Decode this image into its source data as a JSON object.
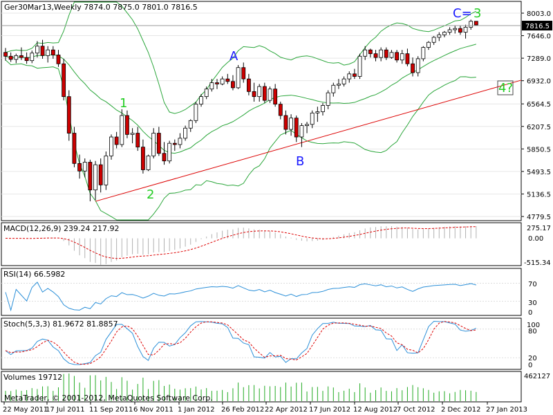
{
  "main": {
    "info": "Ger30Mar13,Weekly  7874.0 7875.0 7801.0 7816.5",
    "current_price": "7816.5",
    "price_ticks": [
      "8003.0",
      "7646.0",
      "7289.0",
      "6932.0",
      "6564.5",
      "6207.5",
      "5850.5",
      "5493.5",
      "5136.5",
      "4779.5"
    ],
    "wave_labels": [
      {
        "text": "A",
        "color": "blue"
      },
      {
        "text": "B",
        "color": "blue"
      },
      {
        "text": "C=",
        "color": "blue"
      },
      {
        "text": "1",
        "color": "green"
      },
      {
        "text": "2",
        "color": "green"
      },
      {
        "text": "3",
        "color": "green"
      },
      {
        "text": "4?",
        "color": "green"
      }
    ]
  },
  "macd": {
    "title": "MACD(12,26,9) 239.24 217.92",
    "ticks": [
      "275.17",
      "0.00",
      "-515.34"
    ]
  },
  "rsi": {
    "title": "RSI(14) 66.5982",
    "ticks": [
      "70",
      "30",
      "0"
    ]
  },
  "stoch": {
    "title": "Stoch(5,3,3) 81.9672 81.8857",
    "ticks": [
      "100",
      "80",
      "20",
      "0"
    ]
  },
  "volumes": {
    "title": "Volumes 19712",
    "ticks": [
      "462127"
    ]
  },
  "copyright": "MetaTrader, © 2001-2012, MetaQuotes Software Corp.",
  "dates": [
    "22 May 2011",
    "17 Jul 2011",
    "11 Sep 2011",
    "6 Nov 2011",
    "1 Jan 2012",
    "26 Feb 2012",
    "22 Apr 2012",
    "17 Jun 2012",
    "12 Aug 2012",
    "7 Oct 2012",
    "2 Dec 2012",
    "27 Jan 2013"
  ],
  "colors": {
    "bull": "#ffffff",
    "bear": "#cc0000",
    "band": "#2aa63a",
    "trend": "#dd0000",
    "macd_signal": "#dd0000",
    "rsi": "#2b8fd8",
    "stoch_main": "#2b8fd8",
    "stoch_signal": "#dd0000",
    "volume": "#22aa22"
  },
  "chart_data": {
    "type": "candlestick",
    "symbol": "Ger30Mar13",
    "timeframe": "Weekly",
    "ylim": [
      4779.5,
      8003.0
    ],
    "ohlc": [
      [
        7380,
        7450,
        7250,
        7320
      ],
      [
        7320,
        7380,
        7230,
        7270
      ],
      [
        7270,
        7360,
        7210,
        7330
      ],
      [
        7330,
        7460,
        7260,
        7300
      ],
      [
        7300,
        7380,
        7200,
        7250
      ],
      [
        7250,
        7410,
        7210,
        7370
      ],
      [
        7370,
        7560,
        7300,
        7480
      ],
      [
        7480,
        7580,
        7280,
        7330
      ],
      [
        7330,
        7480,
        7220,
        7420
      ],
      [
        7420,
        7480,
        7280,
        7340
      ],
      [
        7340,
        7420,
        7150,
        7200
      ],
      [
        7200,
        7280,
        6620,
        6680
      ],
      [
        6680,
        6780,
        5980,
        6100
      ],
      [
        6100,
        6200,
        5560,
        5620
      ],
      [
        5620,
        5760,
        5380,
        5500
      ],
      [
        5500,
        5700,
        5400,
        5640
      ],
      [
        5640,
        5680,
        5020,
        5200
      ],
      [
        5200,
        5660,
        5040,
        5600
      ],
      [
        5600,
        5700,
        5160,
        5280
      ],
      [
        5280,
        5810,
        5200,
        5740
      ],
      [
        5740,
        6080,
        5680,
        6040
      ],
      [
        6040,
        6120,
        5860,
        5920
      ],
      [
        5920,
        6480,
        5880,
        6380
      ],
      [
        6380,
        6460,
        6020,
        6080
      ],
      [
        6080,
        6180,
        5940,
        6100
      ],
      [
        6100,
        6200,
        5820,
        5880
      ],
      [
        5880,
        6000,
        5460,
        5520
      ],
      [
        5520,
        5760,
        5500,
        5740
      ],
      [
        5740,
        6180,
        5700,
        6100
      ],
      [
        6100,
        6200,
        5740,
        5780
      ],
      [
        5780,
        5960,
        5600,
        5660
      ],
      [
        5660,
        5980,
        5620,
        5940
      ],
      [
        5940,
        6000,
        5820,
        5920
      ],
      [
        5920,
        6100,
        5860,
        6020
      ],
      [
        6020,
        6220,
        5980,
        6180
      ],
      [
        6180,
        6320,
        6120,
        6300
      ],
      [
        6300,
        6600,
        6260,
        6560
      ],
      [
        6560,
        6720,
        6520,
        6680
      ],
      [
        6680,
        6840,
        6640,
        6800
      ],
      [
        6800,
        6960,
        6760,
        6900
      ],
      [
        6900,
        6960,
        6800,
        6880
      ],
      [
        6880,
        7000,
        6860,
        6960
      ],
      [
        6960,
        7040,
        6880,
        6920
      ],
      [
        6920,
        7020,
        6780,
        6820
      ],
      [
        6820,
        7180,
        6800,
        7140
      ],
      [
        7140,
        7220,
        6900,
        6960
      ],
      [
        6960,
        7040,
        6700,
        6760
      ],
      [
        6760,
        6900,
        6600,
        6680
      ],
      [
        6680,
        6880,
        6600,
        6840
      ],
      [
        6840,
        6900,
        6580,
        6620
      ],
      [
        6620,
        6840,
        6580,
        6800
      ],
      [
        6800,
        6880,
        6520,
        6560
      ],
      [
        6560,
        6600,
        6320,
        6380
      ],
      [
        6380,
        6460,
        6080,
        6160
      ],
      [
        6160,
        6400,
        6060,
        6340
      ],
      [
        6340,
        6380,
        5960,
        6040
      ],
      [
        6040,
        6260,
        5880,
        6220
      ],
      [
        6220,
        6280,
        6100,
        6240
      ],
      [
        6240,
        6460,
        6180,
        6420
      ],
      [
        6420,
        6520,
        6280,
        6440
      ],
      [
        6440,
        6580,
        6380,
        6540
      ],
      [
        6540,
        6780,
        6480,
        6740
      ],
      [
        6740,
        6900,
        6680,
        6860
      ],
      [
        6860,
        6960,
        6800,
        6880
      ],
      [
        6880,
        7000,
        6840,
        6960
      ],
      [
        6960,
        7080,
        6900,
        7040
      ],
      [
        7040,
        7120,
        6960,
        7000
      ],
      [
        7000,
        7360,
        6960,
        7320
      ],
      [
        7320,
        7480,
        7260,
        7420
      ],
      [
        7420,
        7440,
        7300,
        7360
      ],
      [
        7360,
        7420,
        7240,
        7300
      ],
      [
        7300,
        7460,
        7240,
        7420
      ],
      [
        7420,
        7460,
        7260,
        7300
      ],
      [
        7300,
        7420,
        7280,
        7380
      ],
      [
        7380,
        7420,
        7220,
        7260
      ],
      [
        7260,
        7420,
        7200,
        7360
      ],
      [
        7360,
        7440,
        7160,
        7200
      ],
      [
        7200,
        7300,
        7000,
        7060
      ],
      [
        7060,
        7320,
        7000,
        7280
      ],
      [
        7280,
        7480,
        7240,
        7460
      ],
      [
        7460,
        7560,
        7420,
        7540
      ],
      [
        7540,
        7640,
        7500,
        7620
      ],
      [
        7620,
        7700,
        7560,
        7660
      ],
      [
        7660,
        7720,
        7620,
        7700
      ],
      [
        7700,
        7780,
        7660,
        7740
      ],
      [
        7740,
        7800,
        7680,
        7760
      ],
      [
        7760,
        7800,
        7660,
        7700
      ],
      [
        7700,
        7820,
        7600,
        7780
      ],
      [
        7780,
        7900,
        7740,
        7874
      ],
      [
        7874,
        7875,
        7801,
        7816.5
      ]
    ],
    "trendline": {
      "from_price": 5020,
      "to_price": 6940
    },
    "macd": {
      "main": 239.24,
      "signal": 217.92,
      "range": [
        -515.34,
        275.17
      ]
    },
    "rsi": {
      "value": 66.5982,
      "levels": [
        30,
        70
      ]
    },
    "stoch": {
      "main": 81.9672,
      "signal": 81.8857,
      "levels": [
        20,
        80
      ]
    },
    "volume": {
      "last": 19712,
      "max": 462127
    }
  }
}
